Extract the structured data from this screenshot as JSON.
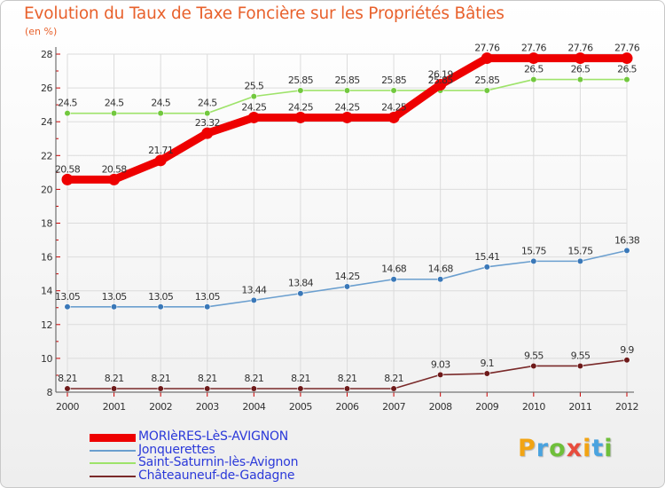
{
  "title": "Evolution du Taux de Taxe Foncière sur les Propriétés Bâties",
  "unit_label": "(en %)",
  "logo": {
    "text": "Proxiti",
    "colors": [
      "#f2a413",
      "#4aa3df",
      "#6fbf3a",
      "#e84c3d",
      "#f2a413",
      "#4aa3df",
      "#6fbf3a"
    ]
  },
  "chart_data": {
    "type": "line",
    "title": "Evolution du Taux de Taxe Foncière sur les Propriétés Bâties",
    "ylabel": "(en %)",
    "xlabel": "",
    "ylim": [
      8,
      28
    ],
    "yticks": [
      8,
      10,
      12,
      14,
      16,
      18,
      20,
      22,
      24,
      26,
      28
    ],
    "grid": true,
    "legend_position": "bottom-left",
    "x": [
      "2000",
      "2001",
      "2002",
      "2003",
      "2004",
      "2005",
      "2006",
      "2007",
      "2008",
      "2009",
      "2010",
      "2011",
      "2012"
    ],
    "series": [
      {
        "name": "MORIèRES-LèS-AVIGNON",
        "color": "#ee0000",
        "marker": "#ee0000",
        "emphasis": true,
        "values": [
          20.58,
          20.58,
          21.71,
          23.32,
          24.25,
          24.25,
          24.25,
          24.25,
          26.19,
          27.76,
          27.76,
          27.76,
          27.76
        ],
        "labels": [
          "20.58",
          "20.58",
          "21.71",
          "23.32",
          "24.25",
          "24.25",
          "24.25",
          "24.25",
          "26.19",
          "27.76",
          "27.76",
          "27.76",
          "27.76"
        ]
      },
      {
        "name": "Jonquerettes",
        "color": "#6b9fcf",
        "marker": "#3a78b8",
        "emphasis": false,
        "values": [
          13.05,
          13.05,
          13.05,
          13.05,
          13.44,
          13.84,
          14.25,
          14.68,
          14.68,
          15.41,
          15.75,
          15.75,
          16.38
        ],
        "labels": [
          "13.05",
          "13.05",
          "13.05",
          "13.05",
          "13.44",
          "13.84",
          "14.25",
          "14.68",
          "14.68",
          "15.41",
          "15.75",
          "15.75",
          "16.38"
        ]
      },
      {
        "name": "Saint-Saturnin-lès-Avignon",
        "color": "#9ee36a",
        "marker": "#72c83e",
        "emphasis": false,
        "values": [
          24.5,
          24.5,
          24.5,
          24.5,
          25.5,
          25.85,
          25.85,
          25.85,
          25.85,
          25.85,
          26.5,
          26.5,
          26.5
        ],
        "labels": [
          "24.5",
          "24.5",
          "24.5",
          "24.5",
          "25.5",
          "25.85",
          "25.85",
          "25.85",
          "25.85",
          "25.85",
          "26.5",
          "26.5",
          "26.5"
        ]
      },
      {
        "name": "Châteauneuf-de-Gadagne",
        "color": "#7a2a2a",
        "marker": "#6e1a1a",
        "emphasis": false,
        "values": [
          8.21,
          8.21,
          8.21,
          8.21,
          8.21,
          8.21,
          8.21,
          8.21,
          9.03,
          9.1,
          9.55,
          9.55,
          9.9
        ],
        "labels": [
          "8.21",
          "8.21",
          "8.21",
          "8.21",
          "8.21",
          "8.21",
          "8.21",
          "8.21",
          "9.03",
          "9.1",
          "9.55",
          "9.55",
          "9.9"
        ]
      }
    ]
  }
}
